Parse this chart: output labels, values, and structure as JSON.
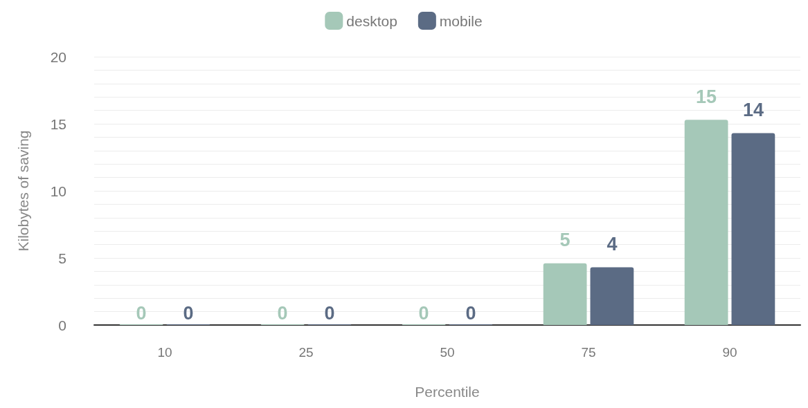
{
  "chart_data": {
    "type": "bar",
    "xlabel": "Percentile",
    "ylabel": "Kilobytes of saving",
    "categories": [
      "10",
      "25",
      "50",
      "75",
      "90"
    ],
    "series": [
      {
        "name": "desktop",
        "color": "#a5c8b8",
        "values": [
          0,
          0,
          0,
          4.6,
          15.3
        ],
        "value_labels": [
          "0",
          "0",
          "0",
          "5",
          "15"
        ]
      },
      {
        "name": "mobile",
        "color": "#5b6b84",
        "values": [
          0,
          0,
          0,
          4.3,
          14.3
        ],
        "value_labels": [
          "0",
          "0",
          "0",
          "4",
          "14"
        ]
      }
    ],
    "ylim": [
      0,
      20
    ],
    "yticks": [
      0,
      {
        "value": 1,
        "label": null
      },
      {
        "value": 2,
        "label": null
      },
      {
        "value": 3,
        "label": null
      },
      {
        "value": 4,
        "label": null
      },
      5,
      {
        "value": 6,
        "label": null
      },
      {
        "value": 7,
        "label": null
      },
      {
        "value": 8,
        "label": null
      },
      {
        "value": 9,
        "label": null
      },
      10,
      {
        "value": 11,
        "label": null
      },
      {
        "value": 12,
        "label": null
      },
      {
        "value": 13,
        "label": null
      },
      {
        "value": 14,
        "label": null
      },
      15,
      {
        "value": 16,
        "label": null
      },
      {
        "value": 17,
        "label": null
      },
      {
        "value": 18,
        "label": null
      },
      {
        "value": 19,
        "label": null
      },
      20
    ],
    "grid": "y",
    "legend": "top"
  }
}
